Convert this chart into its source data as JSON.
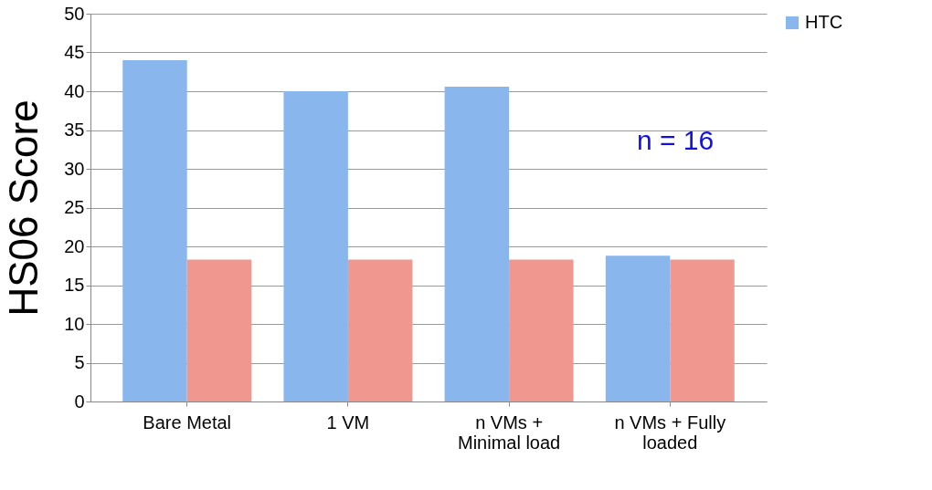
{
  "chart_data": {
    "type": "bar",
    "ylabel": "HS06 Score",
    "categories": [
      "Bare Metal",
      "1 VM",
      "n VMs + Minimal load",
      "n VMs + Fully loaded"
    ],
    "series": [
      {
        "name": "HTC",
        "color": "#8ab6ee",
        "values": [
          44.0,
          40.0,
          40.6,
          18.8
        ]
      },
      {
        "color": "#f09890",
        "values": [
          18.3,
          18.3,
          18.3,
          18.3
        ]
      }
    ],
    "ylim": [
      0,
      50
    ],
    "yticks": [
      0,
      5,
      10,
      15,
      20,
      25,
      30,
      35,
      40,
      45,
      50
    ],
    "grid": "y",
    "legend": "right",
    "annotations": [
      "n = 16"
    ]
  }
}
